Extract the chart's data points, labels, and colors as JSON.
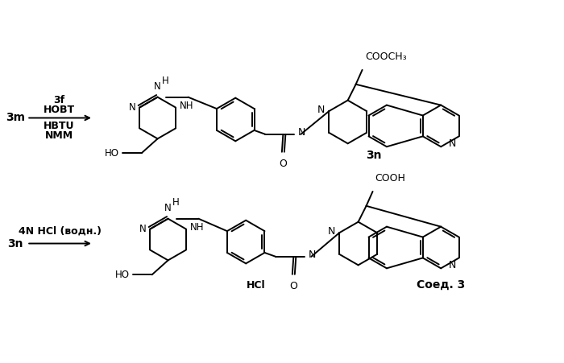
{
  "background_color": "#ffffff",
  "fig_width": 7.0,
  "fig_height": 4.51,
  "dpi": 100,
  "label_3m": "3m",
  "label_3n_top": "3n",
  "label_3n_bot": "3n",
  "label_prod": "Соед. 3",
  "reagents1_top": [
    "3f",
    "HOBT"
  ],
  "reagents1_bot": [
    "HBTU",
    "NMM"
  ],
  "reagent2": "4N HCl (водн.)",
  "cooch3": "COOCH₃",
  "cooh": "COOH",
  "hcl": "HCl",
  "lw": 1.4
}
